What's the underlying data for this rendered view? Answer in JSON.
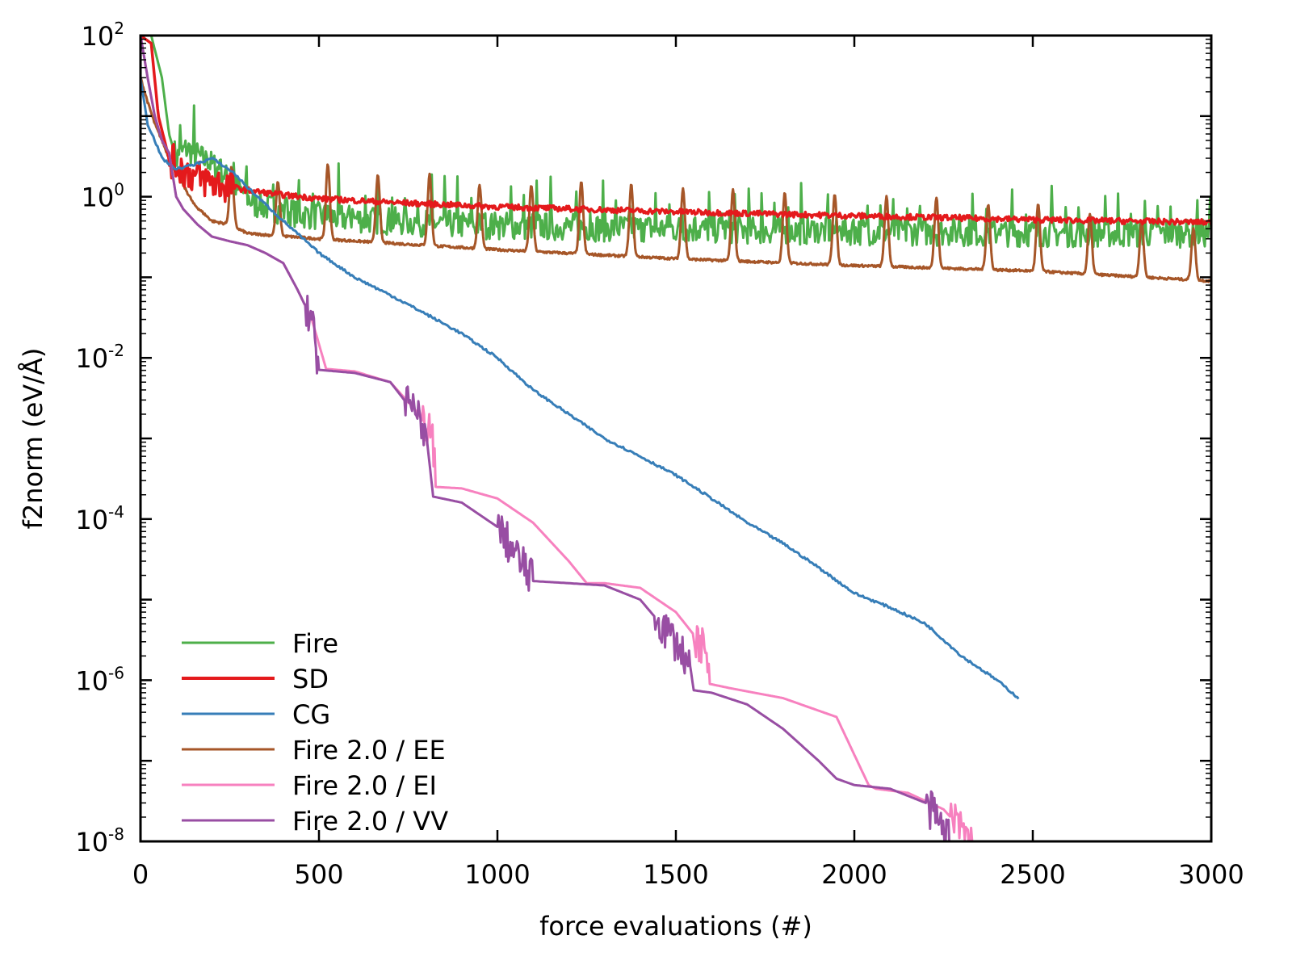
{
  "chart_data": {
    "type": "line",
    "title": "",
    "xlabel": "force evaluations (#)",
    "ylabel": "f2norm (eV/Å)",
    "xlim": [
      0,
      3000
    ],
    "ylim": [
      1e-08,
      100
    ],
    "yscale": "log",
    "grid": false,
    "legend_position": "bottom-left",
    "x_ticks": [
      "0",
      "500",
      "1000",
      "1500",
      "2000",
      "2500",
      "3000"
    ],
    "y_ticks": [
      {
        "base": "10",
        "exp": "2"
      },
      {
        "base": "10",
        "exp": "0"
      },
      {
        "base": "10",
        "exp": "-2"
      },
      {
        "base": "10",
        "exp": "-4"
      },
      {
        "base": "10",
        "exp": "-6"
      },
      {
        "base": "10",
        "exp": "-8"
      }
    ],
    "series": [
      {
        "name": "Fire",
        "color": "#4daf4a",
        "x": [
          0,
          30,
          60,
          80,
          100,
          130,
          170,
          200,
          230,
          250,
          280,
          320,
          380,
          450,
          550,
          700,
          900,
          1200,
          1500,
          1800,
          2100,
          2400,
          2700,
          3000
        ],
        "y": [
          100,
          100,
          30,
          6,
          3,
          4,
          3,
          2.5,
          2,
          1.5,
          1.2,
          0.8,
          0.7,
          0.6,
          0.55,
          0.5,
          0.45,
          0.42,
          0.4,
          0.38,
          0.37,
          0.36,
          0.35,
          0.35
        ],
        "oscillation_peak": 1.2
      },
      {
        "name": "SD",
        "color": "#e41a1c",
        "x": [
          0,
          30,
          50,
          80,
          100,
          150,
          200,
          300,
          400,
          500,
          700,
          1000,
          1500,
          2000,
          2500,
          3000
        ],
        "y": [
          100,
          80,
          10,
          3,
          2.5,
          1.8,
          1.5,
          1.2,
          1.05,
          0.95,
          0.85,
          0.75,
          0.65,
          0.58,
          0.52,
          0.48
        ]
      },
      {
        "name": "CG",
        "color": "#377eb8",
        "x": [
          0,
          20,
          40,
          60,
          100,
          150,
          200,
          260,
          300,
          400,
          500,
          600,
          700,
          800,
          900,
          1000,
          1100,
          1200,
          1300,
          1400,
          1500,
          1600,
          1700,
          1800,
          1900,
          2000,
          2100,
          2200,
          2300,
          2400,
          2460
        ],
        "y": [
          30,
          8,
          5,
          3,
          2.2,
          2.5,
          3,
          2,
          1.3,
          0.5,
          0.2,
          0.1,
          0.06,
          0.035,
          0.02,
          0.01,
          0.004,
          0.002,
          0.001,
          0.0006,
          0.00035,
          0.00018,
          9e-05,
          5e-05,
          2.5e-05,
          1.2e-05,
          8e-06,
          5e-06,
          2e-06,
          1e-06,
          6e-07
        ]
      },
      {
        "name": "Fire 2.0 / EE",
        "color": "#a65628",
        "x": [
          0,
          20,
          40,
          60,
          80,
          100,
          150,
          200,
          250,
          300,
          500,
          1000,
          1500,
          2000,
          2500,
          3000
        ],
        "y": [
          30,
          15,
          8,
          5,
          3,
          2,
          0.8,
          0.5,
          0.45,
          0.35,
          0.3,
          0.22,
          0.17,
          0.14,
          0.12,
          0.09
        ],
        "spike_positions": [
          255,
          385,
          525,
          665,
          810,
          950,
          1095,
          1235,
          1375,
          1520,
          1660,
          1805,
          1945,
          2090,
          2230,
          2375,
          2515,
          2660,
          2805,
          2950
        ],
        "spike_heights": [
          2.3,
          1.5,
          2.5,
          1.9,
          1.9,
          1.4,
          1.4,
          1.5,
          1.4,
          1.3,
          1.2,
          1.1,
          1.1,
          1.0,
          1.0,
          0.8,
          0.8,
          0.6,
          0.5,
          0.4
        ]
      },
      {
        "name": "Fire 2.0 / EI",
        "color": "#f781bf",
        "x": [
          0,
          20,
          40,
          60,
          80,
          100,
          120,
          160,
          200,
          250,
          300,
          350,
          400,
          440,
          480,
          520,
          600,
          700,
          780,
          800,
          815,
          830,
          900,
          1000,
          1100,
          1200,
          1250,
          1300,
          1400,
          1500,
          1580,
          1595,
          1650,
          1800,
          1950,
          2040,
          2060,
          2150,
          2250,
          2330
        ],
        "y": [
          100,
          30,
          10,
          5,
          3.5,
          1,
          0.7,
          0.45,
          0.32,
          0.28,
          0.25,
          0.2,
          0.15,
          0.07,
          0.03,
          0.0073,
          0.0068,
          0.005,
          0.002,
          0.0013,
          0.0012,
          0.00025,
          0.00024,
          0.00018,
          9e-05,
          3e-05,
          1.6e-05,
          1.6e-05,
          1.4e-05,
          7e-06,
          2.5e-06,
          9e-07,
          8e-07,
          6e-07,
          3.5e-07,
          5e-08,
          4.5e-08,
          4e-08,
          2.5e-08,
          1e-08
        ]
      },
      {
        "name": "Fire 2.0 / VV",
        "color": "#984ea3",
        "x": [
          0,
          20,
          40,
          60,
          80,
          100,
          120,
          160,
          200,
          250,
          300,
          350,
          400,
          440,
          480,
          500,
          600,
          700,
          770,
          790,
          800,
          820,
          900,
          1000,
          1100,
          1200,
          1300,
          1400,
          1500,
          1540,
          1550,
          1600,
          1700,
          1800,
          1900,
          1950,
          2000,
          2100,
          2200,
          2270
        ],
        "y": [
          100,
          30,
          10,
          5,
          3.5,
          1,
          0.7,
          0.45,
          0.32,
          0.28,
          0.25,
          0.2,
          0.15,
          0.07,
          0.03,
          0.0071,
          0.0065,
          0.005,
          0.002,
          0.0015,
          0.0012,
          0.00019,
          0.00016,
          8e-05,
          1.7e-05,
          1.6e-05,
          1.5e-05,
          1e-05,
          3e-06,
          1.5e-06,
          7.5e-07,
          7e-07,
          5e-07,
          2.5e-07,
          1e-07,
          6e-08,
          5e-08,
          4.5e-08,
          3e-08,
          1e-08
        ]
      }
    ]
  }
}
